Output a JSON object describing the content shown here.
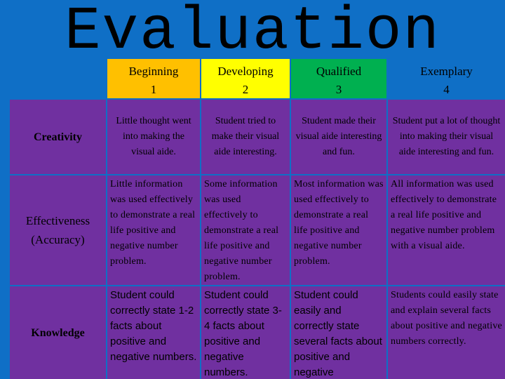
{
  "title": "Evaluation",
  "colors": {
    "background": "#0f6fc6",
    "row_fill": "#7030a0",
    "beginning": "#ffc000",
    "developing": "#ffff00",
    "qualified": "#00b050",
    "exemplary": "#0f6fc6"
  },
  "headers": [
    {
      "name": "Beginning",
      "score": "1"
    },
    {
      "name": "Developing",
      "score": "2"
    },
    {
      "name": "Qualified",
      "score": "3"
    },
    {
      "name": "Exemplary",
      "score": "4"
    }
  ],
  "rows": [
    {
      "label": "Creativity",
      "cells": [
        "Little thought went into making the visual aide.",
        "Student tried to make their visual aide interesting.",
        "Student made their visual aide interesting and fun.",
        "Student put a lot of thought into making their visual aide interesting and fun."
      ]
    },
    {
      "label": "Effectiveness (Accuracy)",
      "cells": [
        "Little information was used effectively to demonstrate a real life positive and negative number problem.",
        "Some information was used effectively to demonstrate a real life positive and negative number problem.",
        "Most information was used effectively to demonstrate a real life positive and negative number problem.",
        "All information was used effectively to demonstrate a real life positive and negative number problem with a visual aide."
      ]
    },
    {
      "label": "Knowledge",
      "cells": [
        "Student could correctly state 1-2 facts about positive and negative numbers.",
        "Student could correctly state 3-4 facts about positive and negative numbers.",
        "Student could easily and correctly state several facts about positive and negative",
        "Students could easily state and explain several facts about positive and negative numbers correctly."
      ]
    }
  ]
}
